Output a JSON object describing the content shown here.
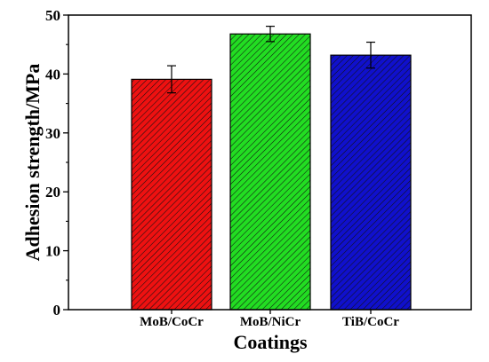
{
  "chart_data": {
    "type": "bar",
    "title": "",
    "xlabel": "Coatings",
    "ylabel": "Adhesion strength/MPa",
    "categories": [
      "MoB/CoCr",
      "MoB/NiCr",
      "TiB/CoCr"
    ],
    "values": [
      39.1,
      46.8,
      43.2
    ],
    "errors": [
      2.3,
      1.3,
      2.2
    ],
    "colors": [
      "#ee1111",
      "#22dd22",
      "#1010cc"
    ],
    "fill_pattern": "diagonal-hatch",
    "ylim": [
      0,
      50
    ],
    "yticks": [
      0,
      10,
      20,
      30,
      40,
      50
    ],
    "grid": false,
    "legend": "none"
  }
}
